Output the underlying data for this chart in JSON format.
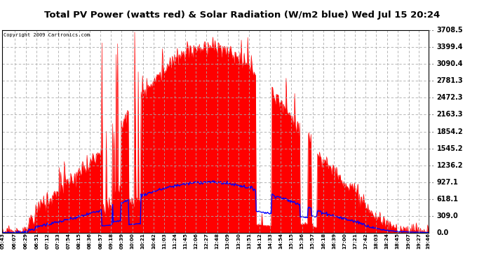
{
  "title": "Total PV Power (watts red) & Solar Radiation (W/m2 blue) Wed Jul 15 20:24",
  "copyright": "Copyright 2009 Cartronics.com",
  "bg_color": "#ffffff",
  "plot_bg_color": "#ffffff",
  "red_color": "#ff0000",
  "blue_color": "#0000ff",
  "grid_color": "#aaaaaa",
  "yticks": [
    0.0,
    309.0,
    618.1,
    927.1,
    1236.2,
    1545.2,
    1854.2,
    2163.3,
    2472.3,
    2781.3,
    3090.4,
    3399.4,
    3708.5
  ],
  "ymax": 3708.5,
  "xtick_labels": [
    "05:43",
    "06:07",
    "06:29",
    "06:51",
    "07:12",
    "07:33",
    "07:54",
    "08:15",
    "08:36",
    "08:57",
    "09:18",
    "09:39",
    "10:00",
    "10:21",
    "10:42",
    "11:03",
    "11:24",
    "11:45",
    "12:06",
    "12:27",
    "12:48",
    "13:09",
    "13:30",
    "13:51",
    "14:12",
    "14:33",
    "14:54",
    "15:15",
    "15:36",
    "15:57",
    "16:18",
    "16:39",
    "17:00",
    "17:21",
    "17:42",
    "18:03",
    "18:24",
    "18:45",
    "19:07",
    "19:27",
    "19:46"
  ]
}
